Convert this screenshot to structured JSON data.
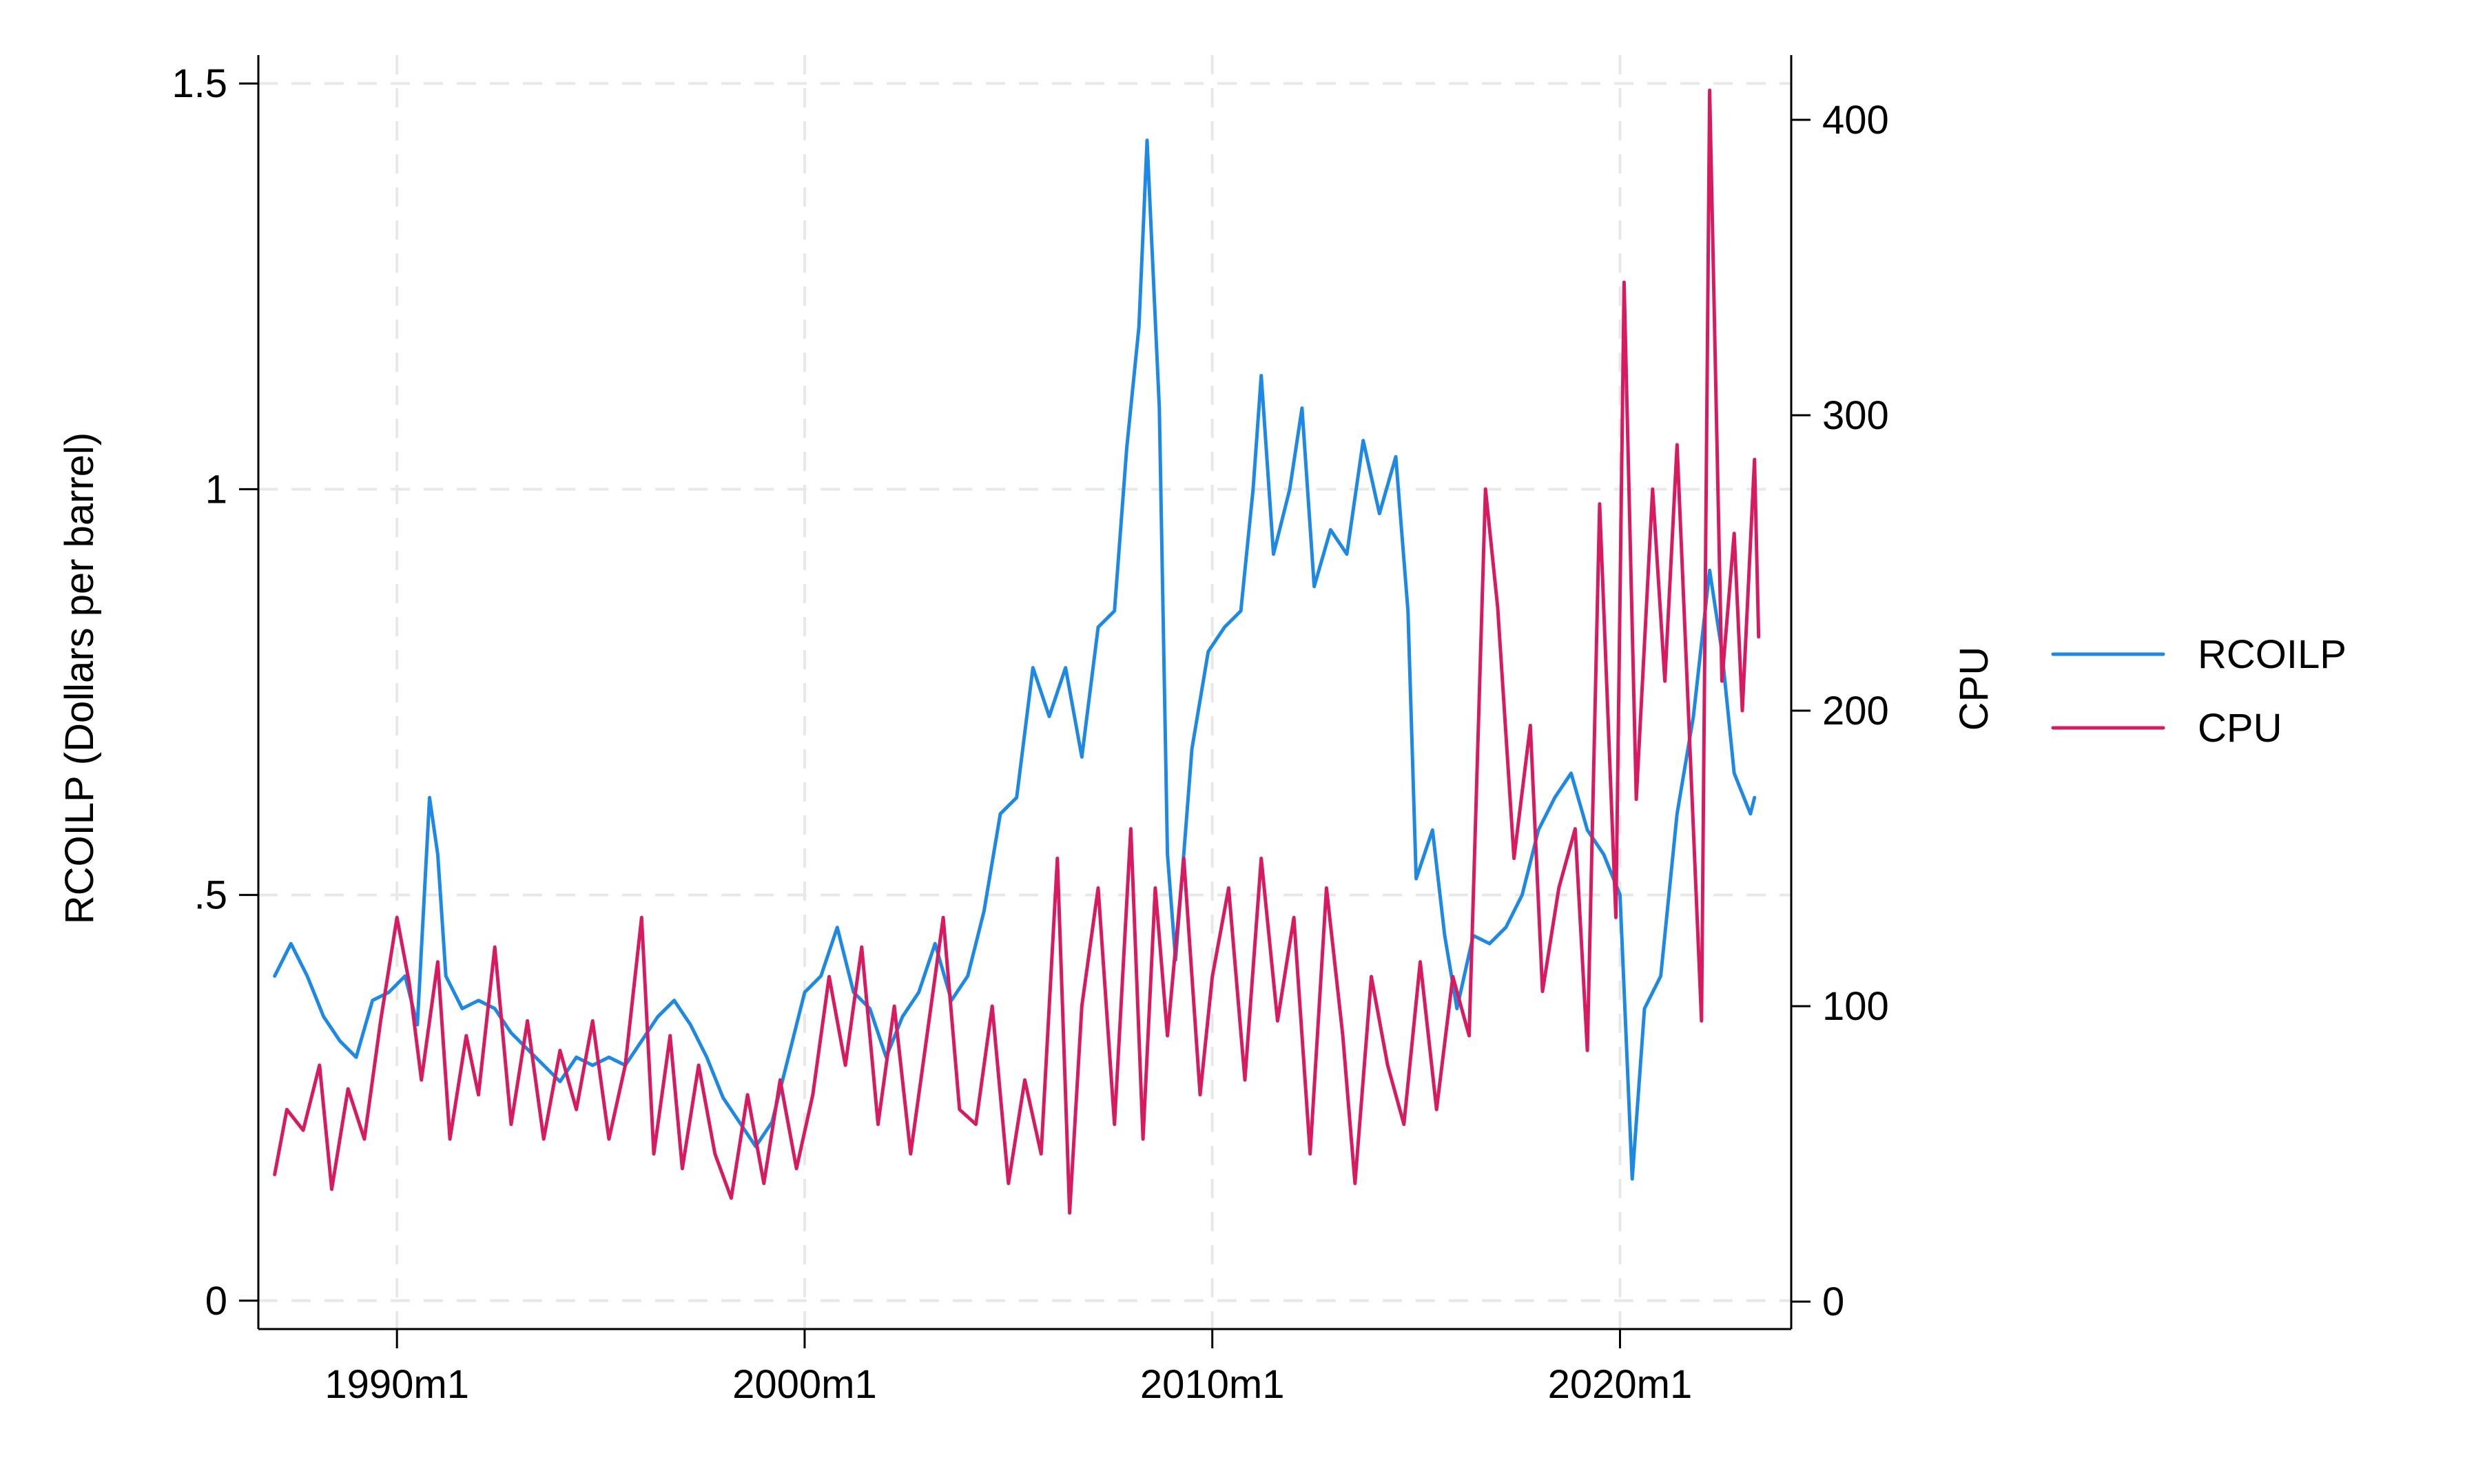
{
  "chart_data": {
    "type": "line",
    "title": "",
    "xlabel": "",
    "x_tick_labels": [
      "1990m1",
      "2000m1",
      "2010m1",
      "2020m1"
    ],
    "x_tick_values": [
      1990,
      2000,
      2010,
      2020
    ],
    "xlim": [
      1986.6,
      2024.2
    ],
    "y_left": {
      "label": "RCOILP (Dollars per barrel)",
      "ylim": [
        -0.035,
        1.535
      ],
      "ticks": [
        0,
        0.5,
        1,
        1.5
      ],
      "tick_labels": [
        "0",
        ".5",
        "1",
        "1.5"
      ]
    },
    "y_right": {
      "label": "CPU",
      "ylim": [
        -9.3,
        421.9
      ],
      "ticks": [
        0,
        100,
        200,
        300,
        400
      ],
      "tick_labels": [
        "0",
        "100",
        "200",
        "300",
        "400"
      ]
    },
    "grid": true,
    "legend_position": "right",
    "series": [
      {
        "name": "RCOILP",
        "axis": "left",
        "color": "#1e88e5",
        "points": [
          [
            1987.0,
            0.4
          ],
          [
            1987.4,
            0.44
          ],
          [
            1987.8,
            0.4
          ],
          [
            1988.2,
            0.35
          ],
          [
            1988.6,
            0.32
          ],
          [
            1989.0,
            0.3
          ],
          [
            1989.4,
            0.37
          ],
          [
            1989.8,
            0.38
          ],
          [
            1990.2,
            0.4
          ],
          [
            1990.5,
            0.34
          ],
          [
            1990.8,
            0.62
          ],
          [
            1991.0,
            0.55
          ],
          [
            1991.2,
            0.4
          ],
          [
            1991.6,
            0.36
          ],
          [
            1992.0,
            0.37
          ],
          [
            1992.4,
            0.36
          ],
          [
            1992.8,
            0.33
          ],
          [
            1993.2,
            0.31
          ],
          [
            1993.6,
            0.29
          ],
          [
            1994.0,
            0.27
          ],
          [
            1994.4,
            0.3
          ],
          [
            1994.8,
            0.29
          ],
          [
            1995.2,
            0.3
          ],
          [
            1995.6,
            0.29
          ],
          [
            1996.0,
            0.32
          ],
          [
            1996.4,
            0.35
          ],
          [
            1996.8,
            0.37
          ],
          [
            1997.2,
            0.34
          ],
          [
            1997.6,
            0.3
          ],
          [
            1998.0,
            0.25
          ],
          [
            1998.4,
            0.22
          ],
          [
            1998.8,
            0.19
          ],
          [
            1999.2,
            0.22
          ],
          [
            1999.6,
            0.3
          ],
          [
            2000.0,
            0.38
          ],
          [
            2000.4,
            0.4
          ],
          [
            2000.8,
            0.46
          ],
          [
            2001.2,
            0.38
          ],
          [
            2001.6,
            0.36
          ],
          [
            2002.0,
            0.3
          ],
          [
            2002.4,
            0.35
          ],
          [
            2002.8,
            0.38
          ],
          [
            2003.2,
            0.44
          ],
          [
            2003.6,
            0.37
          ],
          [
            2004.0,
            0.4
          ],
          [
            2004.4,
            0.48
          ],
          [
            2004.8,
            0.6
          ],
          [
            2005.2,
            0.62
          ],
          [
            2005.6,
            0.78
          ],
          [
            2006.0,
            0.72
          ],
          [
            2006.4,
            0.78
          ],
          [
            2006.8,
            0.67
          ],
          [
            2007.2,
            0.83
          ],
          [
            2007.6,
            0.85
          ],
          [
            2007.9,
            1.05
          ],
          [
            2008.2,
            1.2
          ],
          [
            2008.4,
            1.43
          ],
          [
            2008.7,
            1.1
          ],
          [
            2008.9,
            0.55
          ],
          [
            2009.1,
            0.42
          ],
          [
            2009.5,
            0.68
          ],
          [
            2009.9,
            0.8
          ],
          [
            2010.3,
            0.83
          ],
          [
            2010.7,
            0.85
          ],
          [
            2011.0,
            1.0
          ],
          [
            2011.2,
            1.14
          ],
          [
            2011.5,
            0.92
          ],
          [
            2011.9,
            1.0
          ],
          [
            2012.2,
            1.1
          ],
          [
            2012.5,
            0.88
          ],
          [
            2012.9,
            0.95
          ],
          [
            2013.3,
            0.92
          ],
          [
            2013.7,
            1.06
          ],
          [
            2014.1,
            0.97
          ],
          [
            2014.5,
            1.04
          ],
          [
            2014.8,
            0.85
          ],
          [
            2015.0,
            0.52
          ],
          [
            2015.4,
            0.58
          ],
          [
            2015.7,
            0.45
          ],
          [
            2016.0,
            0.36
          ],
          [
            2016.4,
            0.45
          ],
          [
            2016.8,
            0.44
          ],
          [
            2017.2,
            0.46
          ],
          [
            2017.6,
            0.5
          ],
          [
            2018.0,
            0.58
          ],
          [
            2018.4,
            0.62
          ],
          [
            2018.8,
            0.65
          ],
          [
            2019.2,
            0.58
          ],
          [
            2019.6,
            0.55
          ],
          [
            2020.0,
            0.5
          ],
          [
            2020.3,
            0.15
          ],
          [
            2020.6,
            0.36
          ],
          [
            2021.0,
            0.4
          ],
          [
            2021.4,
            0.6
          ],
          [
            2021.8,
            0.72
          ],
          [
            2022.2,
            0.9
          ],
          [
            2022.5,
            0.8
          ],
          [
            2022.8,
            0.65
          ],
          [
            2023.2,
            0.6
          ],
          [
            2023.3,
            0.62
          ]
        ]
      },
      {
        "name": "CPU",
        "axis": "right",
        "color": "#d81b60",
        "points": [
          [
            1987.0,
            43
          ],
          [
            1987.3,
            65
          ],
          [
            1987.7,
            58
          ],
          [
            1988.1,
            80
          ],
          [
            1988.4,
            38
          ],
          [
            1988.8,
            72
          ],
          [
            1989.2,
            55
          ],
          [
            1989.6,
            95
          ],
          [
            1990.0,
            130
          ],
          [
            1990.3,
            108
          ],
          [
            1990.6,
            75
          ],
          [
            1991.0,
            115
          ],
          [
            1991.3,
            55
          ],
          [
            1991.7,
            90
          ],
          [
            1992.0,
            70
          ],
          [
            1992.4,
            120
          ],
          [
            1992.8,
            60
          ],
          [
            1993.2,
            95
          ],
          [
            1993.6,
            55
          ],
          [
            1994.0,
            85
          ],
          [
            1994.4,
            65
          ],
          [
            1994.8,
            95
          ],
          [
            1995.2,
            55
          ],
          [
            1995.6,
            80
          ],
          [
            1996.0,
            130
          ],
          [
            1996.3,
            50
          ],
          [
            1996.7,
            90
          ],
          [
            1997.0,
            45
          ],
          [
            1997.4,
            80
          ],
          [
            1997.8,
            50
          ],
          [
            1998.2,
            35
          ],
          [
            1998.6,
            70
          ],
          [
            1999.0,
            40
          ],
          [
            1999.4,
            75
          ],
          [
            1999.8,
            45
          ],
          [
            2000.2,
            70
          ],
          [
            2000.6,
            110
          ],
          [
            2001.0,
            80
          ],
          [
            2001.4,
            120
          ],
          [
            2001.8,
            60
          ],
          [
            2002.2,
            100
          ],
          [
            2002.6,
            50
          ],
          [
            2003.0,
            90
          ],
          [
            2003.4,
            130
          ],
          [
            2003.8,
            65
          ],
          [
            2004.2,
            60
          ],
          [
            2004.6,
            100
          ],
          [
            2005.0,
            40
          ],
          [
            2005.4,
            75
          ],
          [
            2005.8,
            50
          ],
          [
            2006.2,
            150
          ],
          [
            2006.5,
            30
          ],
          [
            2006.8,
            100
          ],
          [
            2007.2,
            140
          ],
          [
            2007.6,
            60
          ],
          [
            2008.0,
            160
          ],
          [
            2008.3,
            55
          ],
          [
            2008.6,
            140
          ],
          [
            2008.9,
            90
          ],
          [
            2009.3,
            150
          ],
          [
            2009.7,
            70
          ],
          [
            2010.0,
            110
          ],
          [
            2010.4,
            140
          ],
          [
            2010.8,
            75
          ],
          [
            2011.2,
            150
          ],
          [
            2011.6,
            95
          ],
          [
            2012.0,
            130
          ],
          [
            2012.4,
            50
          ],
          [
            2012.8,
            140
          ],
          [
            2013.2,
            90
          ],
          [
            2013.5,
            40
          ],
          [
            2013.9,
            110
          ],
          [
            2014.3,
            80
          ],
          [
            2014.7,
            60
          ],
          [
            2015.1,
            115
          ],
          [
            2015.5,
            65
          ],
          [
            2015.9,
            110
          ],
          [
            2016.3,
            90
          ],
          [
            2016.7,
            275
          ],
          [
            2017.0,
            235
          ],
          [
            2017.4,
            150
          ],
          [
            2017.8,
            195
          ],
          [
            2018.1,
            105
          ],
          [
            2018.5,
            140
          ],
          [
            2018.9,
            160
          ],
          [
            2019.2,
            85
          ],
          [
            2019.5,
            270
          ],
          [
            2019.9,
            130
          ],
          [
            2020.1,
            345
          ],
          [
            2020.4,
            170
          ],
          [
            2020.8,
            275
          ],
          [
            2021.1,
            210
          ],
          [
            2021.4,
            290
          ],
          [
            2021.8,
            160
          ],
          [
            2022.0,
            95
          ],
          [
            2022.2,
            410
          ],
          [
            2022.5,
            210
          ],
          [
            2022.8,
            260
          ],
          [
            2023.0,
            200
          ],
          [
            2023.3,
            285
          ],
          [
            2023.4,
            225
          ]
        ]
      }
    ]
  }
}
